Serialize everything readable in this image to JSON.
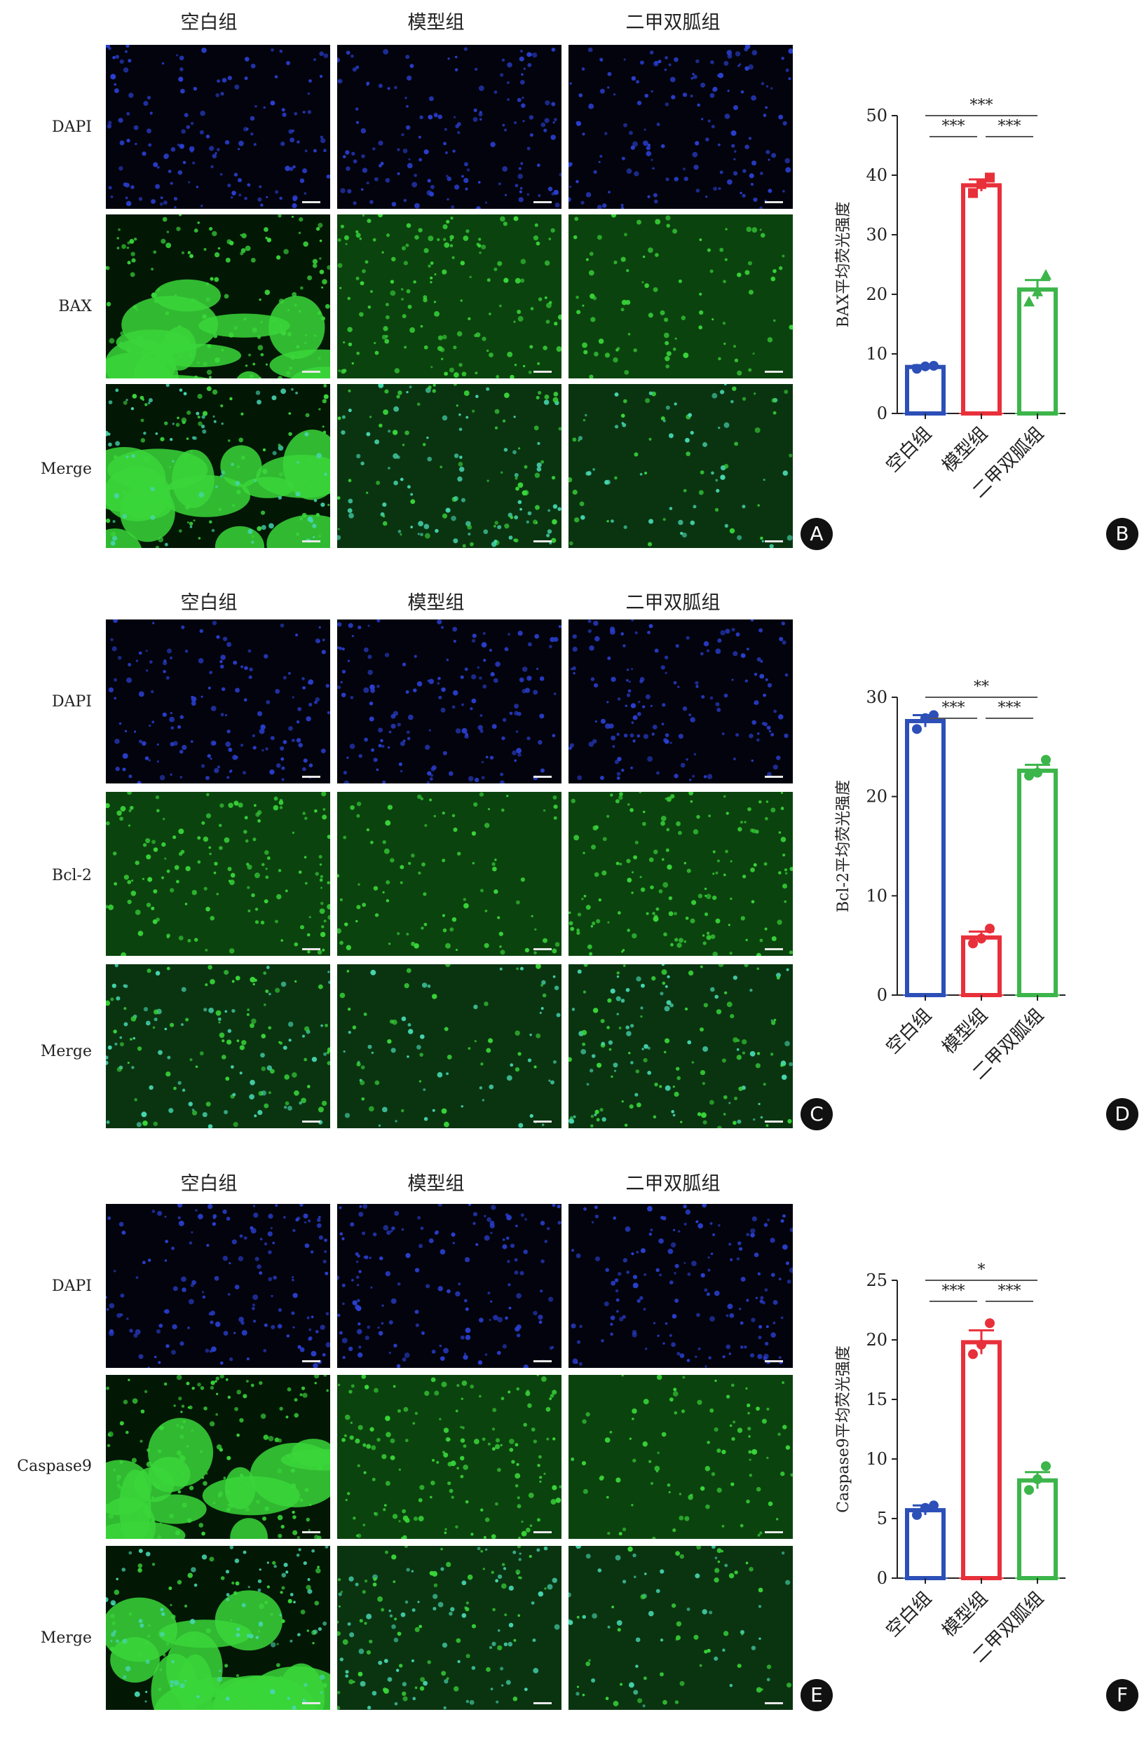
{
  "sections": [
    {
      "column_headers": [
        "空白组",
        "模型组",
        "二甲双胍组"
      ],
      "row_labels": [
        "DAPI",
        "BAX",
        "Merge"
      ],
      "image_panel_letter": "A",
      "chart_panel_letter": "B"
    },
    {
      "column_headers": [
        "空白组",
        "模型组",
        "二甲双胍组"
      ],
      "row_labels": [
        "DAPI",
        "Bcl-2",
        "Merge"
      ],
      "image_panel_letter": "C",
      "chart_panel_letter": "D"
    },
    {
      "column_headers": [
        "空白组",
        "模型组",
        "二甲双胍组"
      ],
      "row_labels": [
        "DAPI",
        "Caspase9",
        "Merge"
      ],
      "image_panel_letter": "E",
      "chart_panel_letter": "F"
    }
  ],
  "colors": {
    "blank": "#2c4fb8",
    "model": "#e8303a",
    "metformin": "#3cb54a",
    "dapi": "#2a3fd0",
    "green": "#39d63a",
    "merge_cyan": "#46d6b0"
  },
  "chart_data": [
    {
      "type": "bar",
      "ylabel": "BAX平均荧光强度",
      "categories": [
        "空白组",
        "模型组",
        "二甲双胍组"
      ],
      "values": [
        7.8,
        38.3,
        20.8
      ],
      "errors": [
        0.3,
        1.0,
        1.6
      ],
      "points": [
        [
          7.5,
          7.9,
          8.0
        ],
        [
          37.0,
          38.5,
          39.6
        ],
        [
          18.8,
          20.5,
          23.3
        ]
      ],
      "point_markers": [
        "circle",
        "square",
        "triangle"
      ],
      "ylim": [
        0,
        50
      ],
      "yticks": [
        0,
        10,
        20,
        30,
        40,
        50
      ],
      "significance": [
        {
          "from": 0,
          "to": 2,
          "label": "***",
          "level": 2
        },
        {
          "from": 0,
          "to": 1,
          "label": "***",
          "level": 1
        },
        {
          "from": 1,
          "to": 2,
          "label": "***",
          "level": 1
        }
      ]
    },
    {
      "type": "bar",
      "ylabel": "Bcl-2平均荧光强度",
      "categories": [
        "空白组",
        "模型组",
        "二甲双胍组"
      ],
      "values": [
        27.6,
        5.8,
        22.6
      ],
      "errors": [
        0.6,
        0.6,
        0.6
      ],
      "points": [
        [
          26.8,
          27.9,
          28.2
        ],
        [
          5.2,
          5.7,
          6.7
        ],
        [
          22.1,
          22.4,
          23.7
        ]
      ],
      "point_markers": [
        "circle",
        "circle",
        "circle"
      ],
      "ylim": [
        0,
        30
      ],
      "yticks": [
        0,
        10,
        20,
        30
      ],
      "significance": [
        {
          "from": 0,
          "to": 2,
          "label": "**",
          "level": 2
        },
        {
          "from": 0,
          "to": 1,
          "label": "***",
          "level": 1
        },
        {
          "from": 1,
          "to": 2,
          "label": "***",
          "level": 1
        }
      ]
    },
    {
      "type": "bar",
      "ylabel": "Caspase9平均荧光强度",
      "categories": [
        "空白组",
        "模型组",
        "二甲双胍组"
      ],
      "values": [
        5.7,
        19.8,
        8.2
      ],
      "errors": [
        0.4,
        1.0,
        0.7
      ],
      "points": [
        [
          5.3,
          5.9,
          6.1
        ],
        [
          18.8,
          19.6,
          21.4
        ],
        [
          7.4,
          8.3,
          9.4
        ]
      ],
      "point_markers": [
        "circle",
        "circle",
        "circle"
      ],
      "ylim": [
        0,
        25
      ],
      "yticks": [
        0,
        5,
        10,
        15,
        20,
        25
      ],
      "significance": [
        {
          "from": 0,
          "to": 2,
          "label": "*",
          "level": 2
        },
        {
          "from": 0,
          "to": 1,
          "label": "***",
          "level": 1
        },
        {
          "from": 1,
          "to": 2,
          "label": "***",
          "level": 1
        }
      ]
    }
  ]
}
